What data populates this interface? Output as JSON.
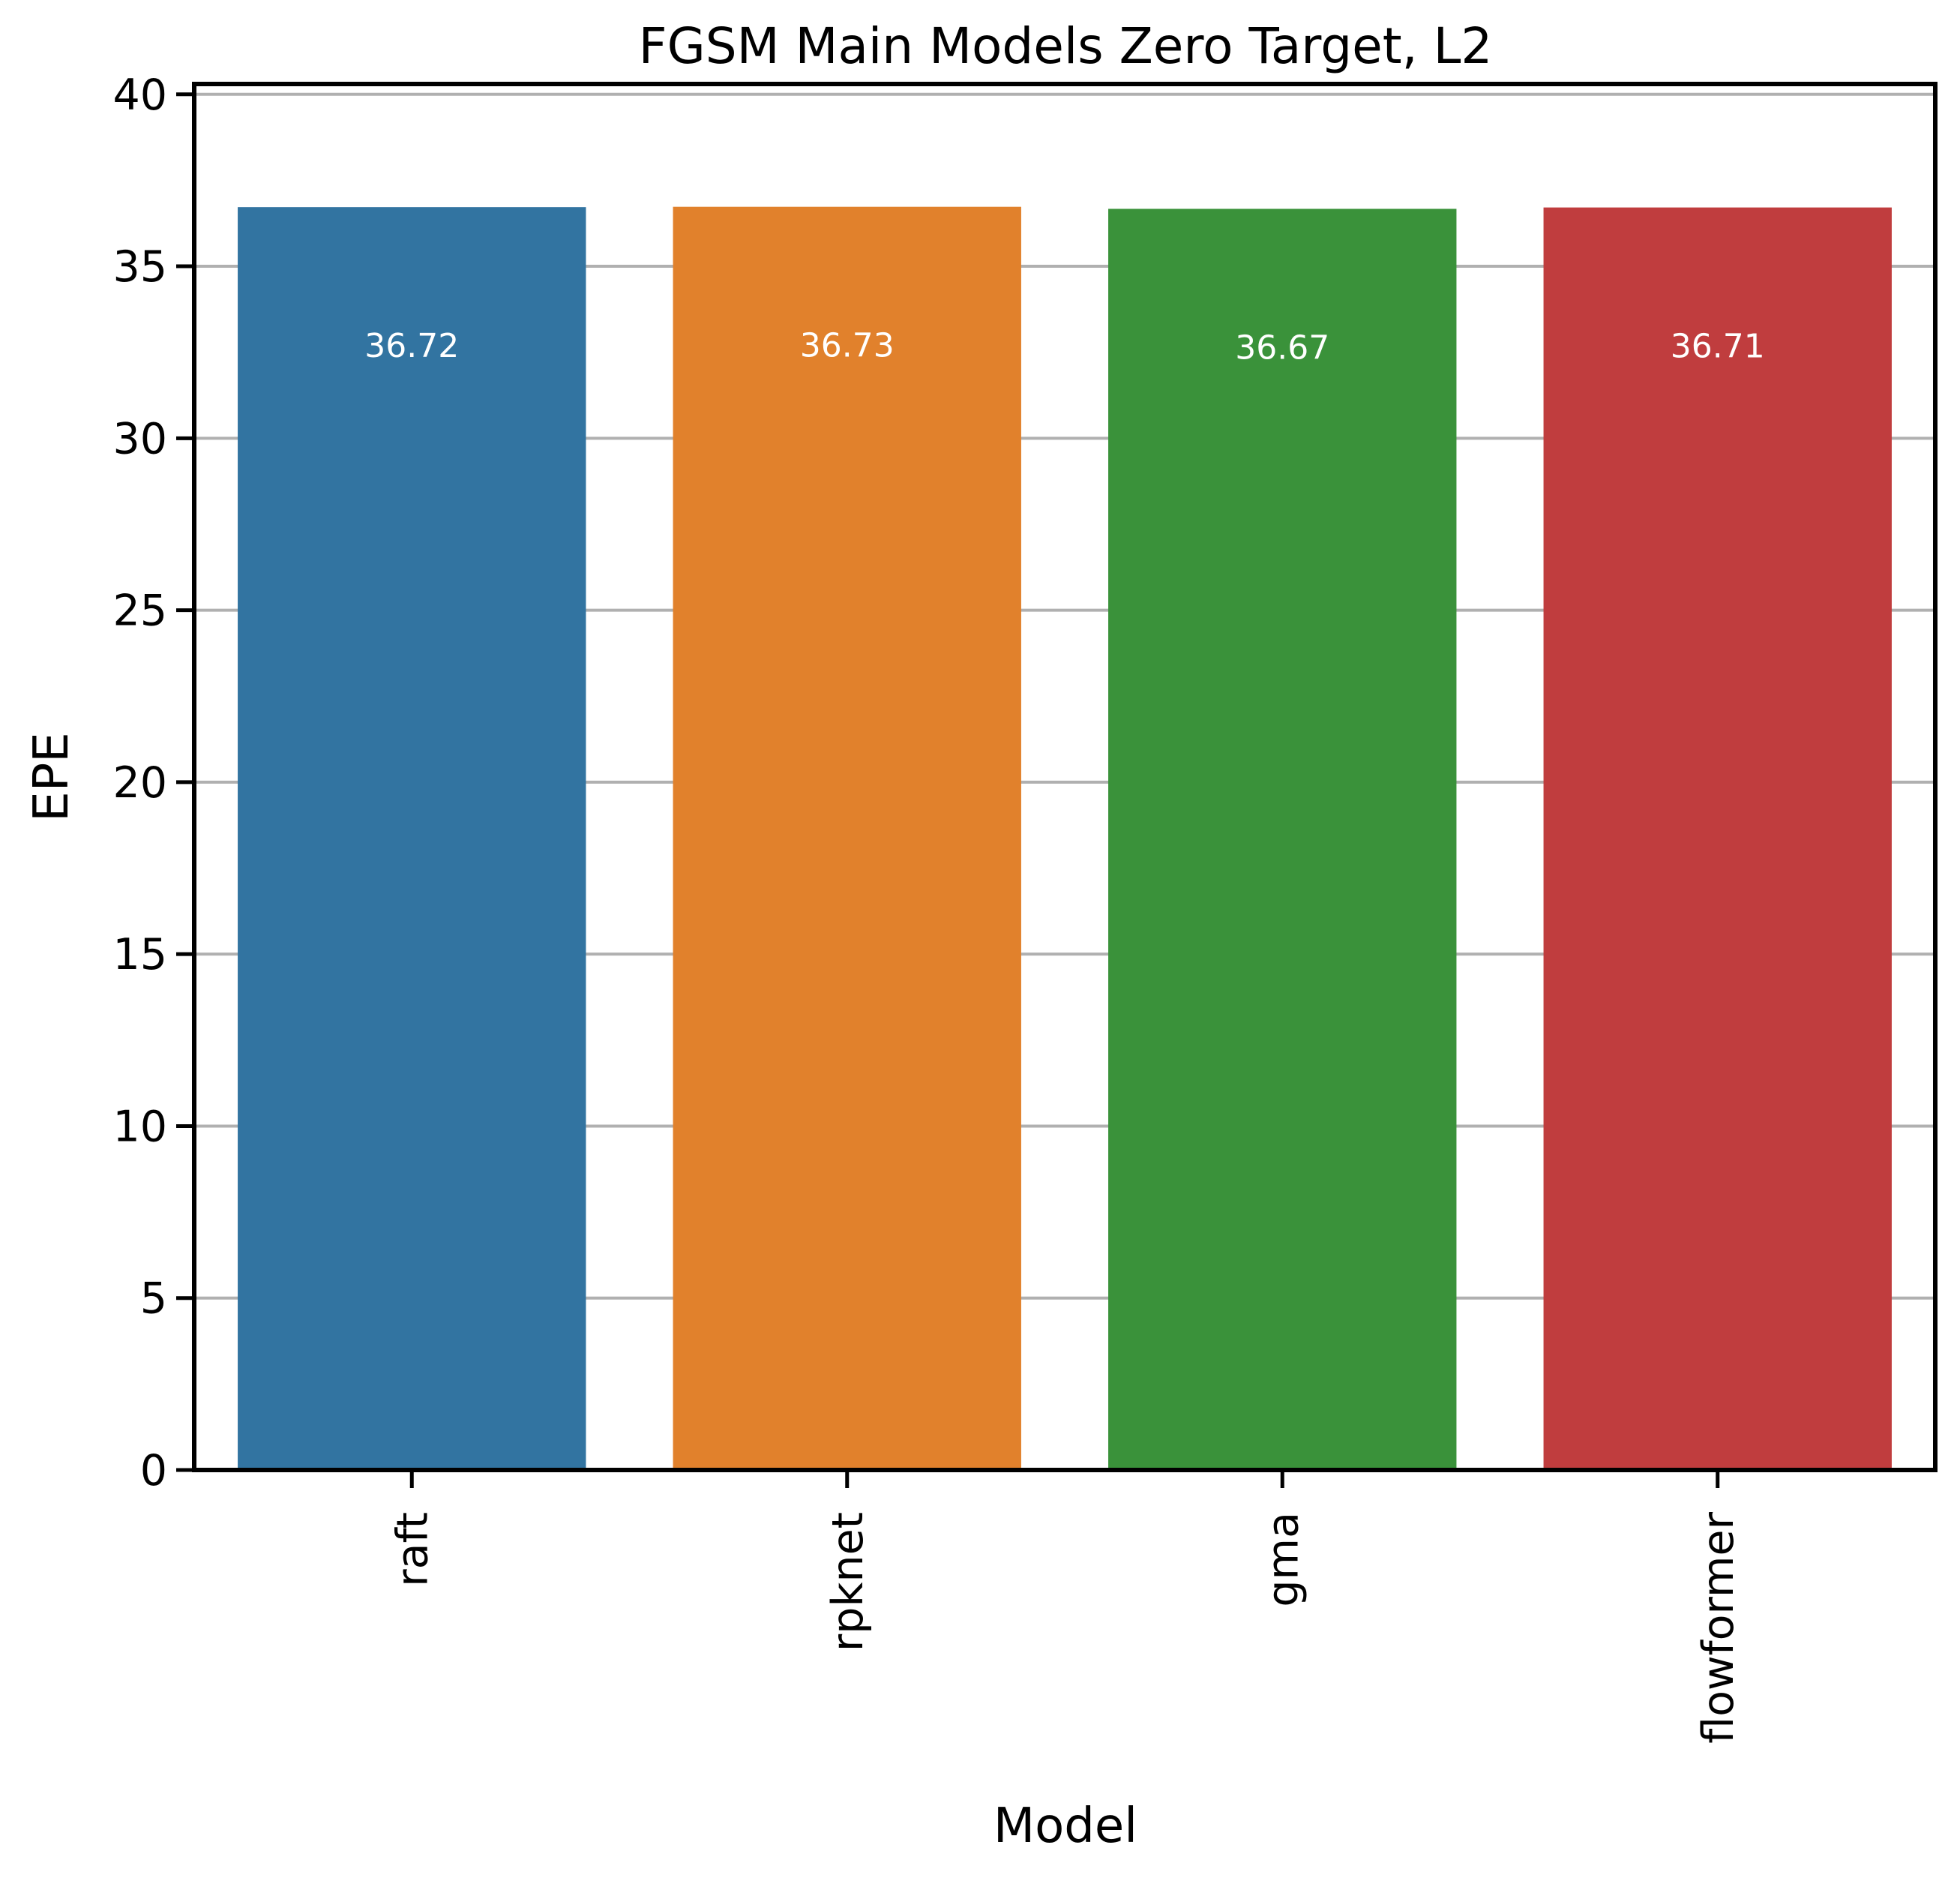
{
  "chart_data": {
    "type": "bar",
    "title": "FGSM Main Models Zero Target, L2",
    "xlabel": "Model",
    "ylabel": "EPE",
    "categories": [
      "raft",
      "rpknet",
      "gma",
      "flowformer"
    ],
    "values": [
      36.72,
      36.73,
      36.67,
      36.71
    ],
    "value_labels": [
      "36.72",
      "36.73",
      "36.67",
      "36.71"
    ],
    "colors": [
      "#3274a1",
      "#e1812c",
      "#3a923a",
      "#c03d3e"
    ],
    "ylim": [
      0,
      40.3
    ],
    "yticks": [
      0,
      5,
      10,
      15,
      20,
      25,
      30,
      35,
      40
    ],
    "ytick_labels": [
      "0",
      "5",
      "10",
      "15",
      "20",
      "25",
      "30",
      "35",
      "40"
    ],
    "grid": "horizontal",
    "grid_color": "#b0b0b0",
    "legend": "none",
    "tick_label_rotation": "vertical"
  }
}
